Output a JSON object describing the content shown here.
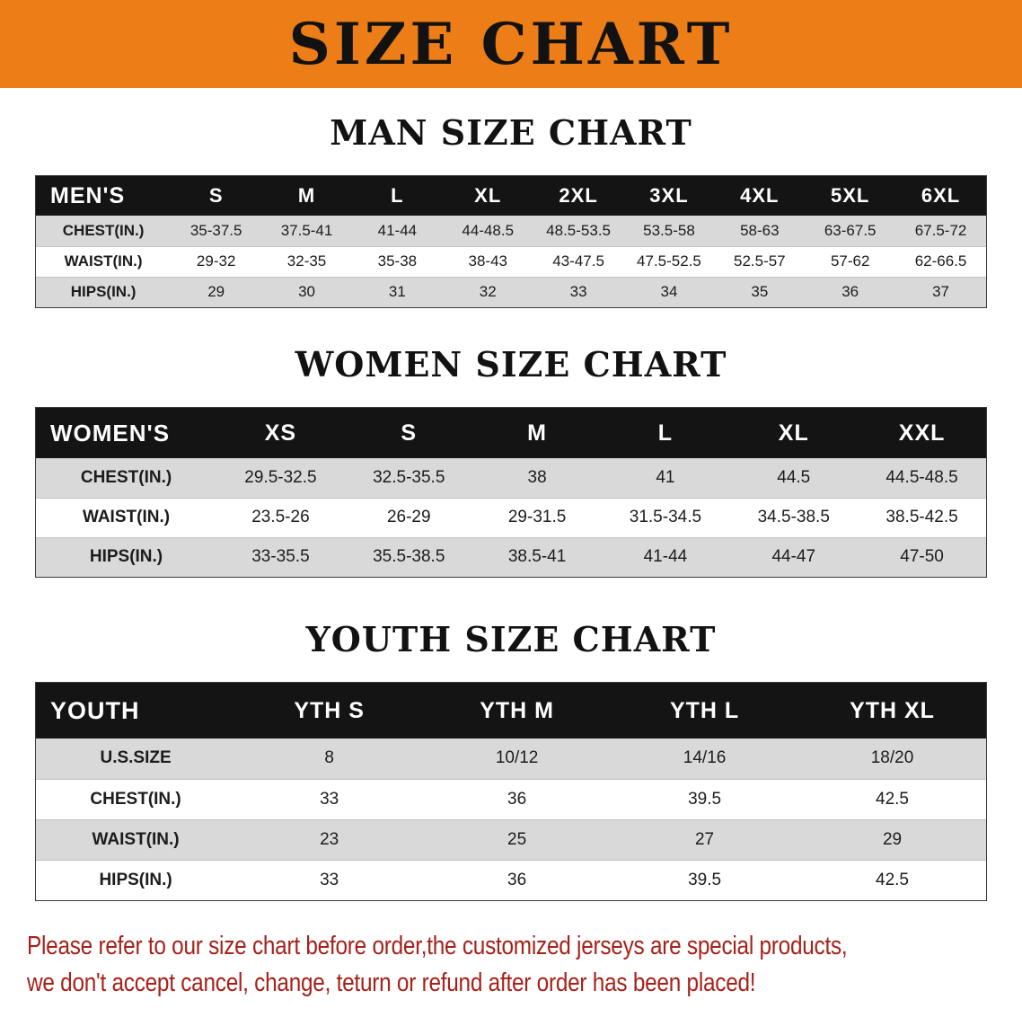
{
  "banner": {
    "title": "SIZE CHART"
  },
  "colors": {
    "banner_bg": "#EC7D17",
    "table_header_bg": "#141414",
    "row_alt_bg": "#D9D9D9",
    "disclaimer_red": "#A62119"
  },
  "men": {
    "heading": "MAN SIZE CHART",
    "table": {
      "header": [
        "MEN'S",
        "S",
        "M",
        "L",
        "XL",
        "2XL",
        "3XL",
        "4XL",
        "5XL",
        "6XL"
      ],
      "rows": [
        [
          "CHEST(IN.)",
          "35-37.5",
          "37.5-41",
          "41-44",
          "44-48.5",
          "48.5-53.5",
          "53.5-58",
          "58-63",
          "63-67.5",
          "67.5-72"
        ],
        [
          "WAIST(IN.)",
          "29-32",
          "32-35",
          "35-38",
          "38-43",
          "43-47.5",
          "47.5-52.5",
          "52.5-57",
          "57-62",
          "62-66.5"
        ],
        [
          "HIPS(IN.)",
          "29",
          "30",
          "31",
          "32",
          "33",
          "34",
          "35",
          "36",
          "37"
        ]
      ]
    }
  },
  "women": {
    "heading": "WOMEN SIZE CHART",
    "table": {
      "header": [
        "WOMEN'S",
        "XS",
        "S",
        "M",
        "L",
        "XL",
        "XXL"
      ],
      "rows": [
        [
          "CHEST(IN.)",
          "29.5-32.5",
          "32.5-35.5",
          "38",
          "41",
          "44.5",
          "44.5-48.5"
        ],
        [
          "WAIST(IN.)",
          "23.5-26",
          "26-29",
          "29-31.5",
          "31.5-34.5",
          "34.5-38.5",
          "38.5-42.5"
        ],
        [
          "HIPS(IN.)",
          "33-35.5",
          "35.5-38.5",
          "38.5-41",
          "41-44",
          "44-47",
          "47-50"
        ]
      ]
    }
  },
  "youth": {
    "heading": "YOUTH SIZE CHART",
    "table": {
      "header": [
        "YOUTH",
        "YTH S",
        "YTH M",
        "YTH L",
        "YTH XL"
      ],
      "rows": [
        [
          "U.S.SIZE",
          "8",
          "10/12",
          "14/16",
          "18/20"
        ],
        [
          "CHEST(IN.)",
          "33",
          "36",
          "39.5",
          "42.5"
        ],
        [
          "WAIST(IN.)",
          "23",
          "25",
          "27",
          "29"
        ],
        [
          "HIPS(IN.)",
          "33",
          "36",
          "39.5",
          "42.5"
        ]
      ]
    }
  },
  "disclaimer": {
    "line1": "Please refer to our size chart before order,the customized jerseys are special products,",
    "line2": "we don't accept cancel, change, teturn or refund after order has been placed!"
  }
}
